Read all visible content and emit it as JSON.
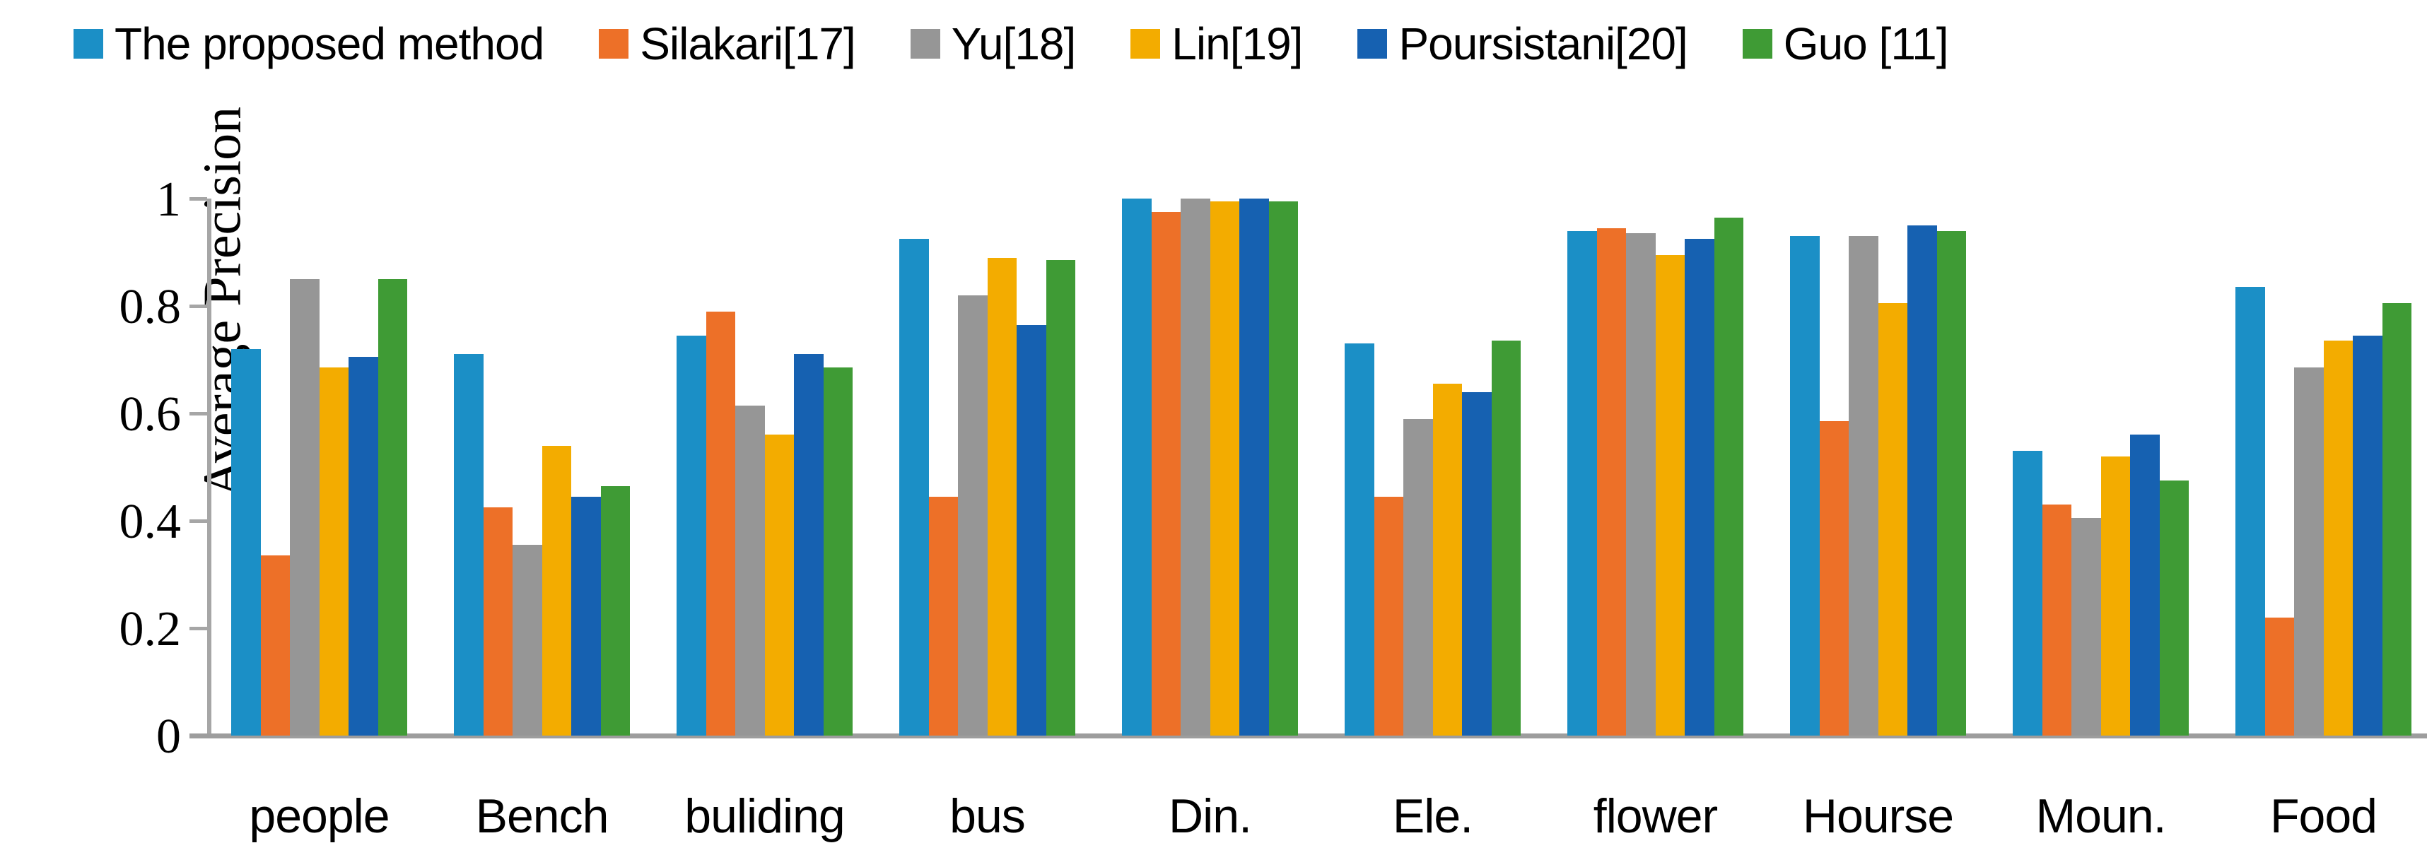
{
  "chart_data": {
    "type": "bar",
    "title": "",
    "ylabel": "Average Precision",
    "xlabel": "",
    "ylim": [
      0,
      1
    ],
    "yticks": [
      0,
      0.2,
      0.4,
      0.6,
      0.8,
      1
    ],
    "ytick_labels": [
      "0",
      "0.2",
      "0.4",
      "0.6",
      "0.8",
      "1"
    ],
    "grid": false,
    "legend_position": "top-left",
    "axis_color": "#a6a6a6",
    "categories": [
      "people",
      "Bench",
      "buliding",
      "bus",
      "Din.",
      "Ele.",
      "flower",
      "Hourse",
      "Moun.",
      "Food"
    ],
    "series": [
      {
        "name": "The proposed method",
        "color": "#1b8fc6",
        "values": [
          0.72,
          0.71,
          0.745,
          0.925,
          1.0,
          0.73,
          0.94,
          0.93,
          0.53,
          0.835
        ]
      },
      {
        "name": "Silakari[17]",
        "color": "#ed7028",
        "values": [
          0.335,
          0.425,
          0.79,
          0.445,
          0.975,
          0.445,
          0.945,
          0.585,
          0.43,
          0.22
        ]
      },
      {
        "name": "Yu[18]",
        "color": "#969696",
        "values": [
          0.85,
          0.355,
          0.615,
          0.82,
          1.0,
          0.59,
          0.935,
          0.93,
          0.405,
          0.685
        ]
      },
      {
        "name": "Lin[19]",
        "color": "#f3ac00",
        "values": [
          0.685,
          0.54,
          0.56,
          0.89,
          0.995,
          0.655,
          0.895,
          0.805,
          0.52,
          0.735
        ]
      },
      {
        "name": "Poursistani[20]",
        "color": "#1661b1",
        "values": [
          0.705,
          0.445,
          0.71,
          0.765,
          1.0,
          0.64,
          0.925,
          0.95,
          0.56,
          0.745
        ]
      },
      {
        "name": "Guo [11]",
        "color": "#3f9b35",
        "values": [
          0.85,
          0.465,
          0.685,
          0.885,
          0.995,
          0.735,
          0.965,
          0.94,
          0.475,
          0.805
        ]
      }
    ]
  }
}
